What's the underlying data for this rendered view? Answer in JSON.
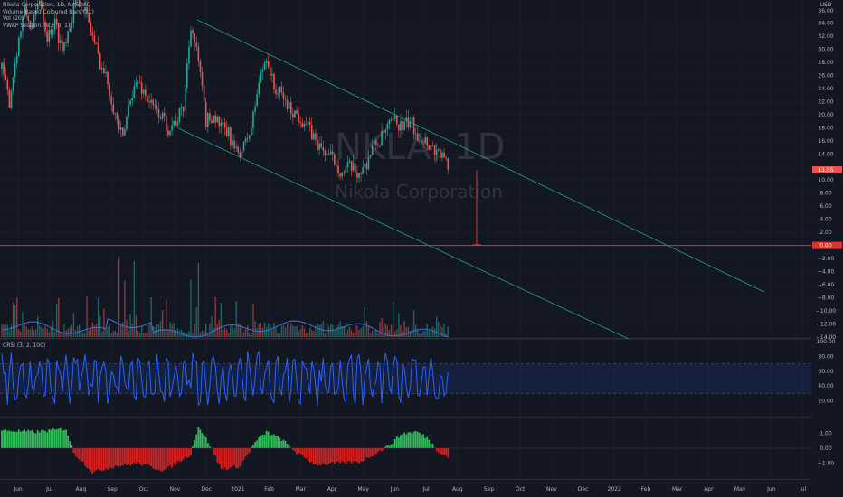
{
  "colors": {
    "background": "#131722",
    "up": "#26a69a",
    "down": "#ef5350",
    "histUp": "#2fbd5a",
    "histDown": "#d32020",
    "volMA": "#3b74d9",
    "crsi": "#2962ff",
    "channel": "#1fa383",
    "priceLine": "#e0332d",
    "grid": "#1e222d",
    "text": "#b2b5be"
  },
  "legend": {
    "title": "Nikola Corporation, 1D, NASDAQ",
    "line2": "Volume Based Coloured Bars (21)",
    "line3": "Vol (20)",
    "line4": "VWAP Session hlc3, 0, 1)"
  },
  "watermark": {
    "ticker": "NKLA, 1D",
    "name": "Nikola Corporation"
  },
  "price_axis": {
    "currency": "USD",
    "top_label": "36.00",
    "labels": [
      "34.00",
      "32.00",
      "30.00",
      "28.00",
      "26.00",
      "24.00",
      "22.00",
      "20.00",
      "18.00",
      "16.00",
      "14.00",
      "12.00",
      "10.00",
      "8.00",
      "6.00",
      "4.00",
      "2.00",
      "0.00",
      "−2.00",
      "−4.00",
      "−6.00",
      "−8.00",
      "−10.00",
      "−12.00",
      "−14.00"
    ],
    "current_price": "11.55",
    "zero_tag": "0.00"
  },
  "time_axis": {
    "labels": [
      "Jun",
      "Jul",
      "Aug",
      "Sep",
      "Oct",
      "Nov",
      "Dec",
      "2021",
      "Feb",
      "Mar",
      "Apr",
      "May",
      "Jun",
      "Jul",
      "Aug",
      "Sep",
      "Oct",
      "Nov",
      "Dec",
      "2022",
      "Feb",
      "Mar",
      "Apr",
      "May",
      "Jun",
      "Jul"
    ]
  },
  "crsi_panel": {
    "label": "CRSI (3, 2, 100)",
    "labels": [
      "100.00",
      "80.00",
      "60.00",
      "40.00",
      "20.00"
    ]
  },
  "hist_panel": {
    "labels": [
      "1.00",
      "0.00",
      "−1.00"
    ]
  },
  "chart_data": {
    "type": "candlestick",
    "symbol": "NKLA",
    "interval": "1D",
    "last_close": 11.55,
    "price_ylim": [
      -14,
      36
    ],
    "channel_lines": [
      {
        "from": [
          "2020-11-12",
          34.0
        ],
        "to": [
          "2022-06-01",
          -7.0
        ]
      },
      {
        "from": [
          "2020-11-12",
          19.0
        ],
        "to": [
          "2021-12-01",
          -14.0
        ]
      }
    ],
    "horizontal_line": 0.0,
    "price_path": [
      [
        0,
        27
      ],
      [
        4,
        22
      ],
      [
        8,
        30
      ],
      [
        12,
        36
      ],
      [
        16,
        33
      ],
      [
        20,
        38
      ],
      [
        24,
        32
      ],
      [
        28,
        34
      ],
      [
        32,
        30
      ],
      [
        36,
        34
      ],
      [
        40,
        38
      ],
      [
        44,
        36
      ],
      [
        48,
        32
      ],
      [
        52,
        28
      ],
      [
        56,
        25
      ],
      [
        60,
        20
      ],
      [
        64,
        16
      ],
      [
        68,
        23
      ],
      [
        72,
        25
      ],
      [
        76,
        23
      ],
      [
        80,
        21
      ],
      [
        84,
        20
      ],
      [
        88,
        18
      ],
      [
        92,
        19
      ],
      [
        96,
        21
      ],
      [
        100,
        34
      ],
      [
        104,
        28
      ],
      [
        108,
        19
      ],
      [
        112,
        20
      ],
      [
        116,
        18
      ],
      [
        120,
        17
      ],
      [
        124,
        14
      ],
      [
        128,
        15
      ],
      [
        132,
        18
      ],
      [
        136,
        25
      ],
      [
        140,
        29
      ],
      [
        144,
        24
      ],
      [
        148,
        23
      ],
      [
        152,
        21
      ],
      [
        156,
        20
      ],
      [
        160,
        19
      ],
      [
        164,
        17
      ],
      [
        168,
        15
      ],
      [
        172,
        14
      ],
      [
        176,
        13
      ],
      [
        180,
        11
      ],
      [
        184,
        12
      ],
      [
        188,
        11
      ],
      [
        192,
        12
      ],
      [
        196,
        15
      ],
      [
        200,
        16
      ],
      [
        204,
        18
      ],
      [
        208,
        19
      ],
      [
        212,
        18
      ],
      [
        216,
        19
      ],
      [
        220,
        17
      ],
      [
        224,
        16
      ],
      [
        228,
        15
      ],
      [
        232,
        14
      ],
      [
        236,
        12
      ]
    ],
    "crsi_ylim": [
      0,
      100
    ],
    "crsi_bands": [
      70,
      30
    ],
    "hist_ylim": [
      -2,
      2
    ],
    "hist_profile": [
      [
        0,
        1.2
      ],
      [
        18,
        1.1
      ],
      [
        34,
        1.3
      ],
      [
        38,
        -0.3
      ],
      [
        48,
        -1.6
      ],
      [
        60,
        -1.2
      ],
      [
        72,
        -1.0
      ],
      [
        86,
        -1.5
      ],
      [
        100,
        -0.4
      ],
      [
        104,
        1.5
      ],
      [
        110,
        0.2
      ],
      [
        116,
        -1.4
      ],
      [
        126,
        -1.2
      ],
      [
        134,
        0.4
      ],
      [
        140,
        1.1
      ],
      [
        148,
        0.6
      ],
      [
        156,
        -0.3
      ],
      [
        166,
        -1.1
      ],
      [
        178,
        -1.0
      ],
      [
        190,
        -0.9
      ],
      [
        204,
        0.1
      ],
      [
        212,
        1.0
      ],
      [
        220,
        1.1
      ],
      [
        226,
        0.6
      ],
      [
        230,
        -0.1
      ],
      [
        236,
        -0.6
      ]
    ]
  }
}
